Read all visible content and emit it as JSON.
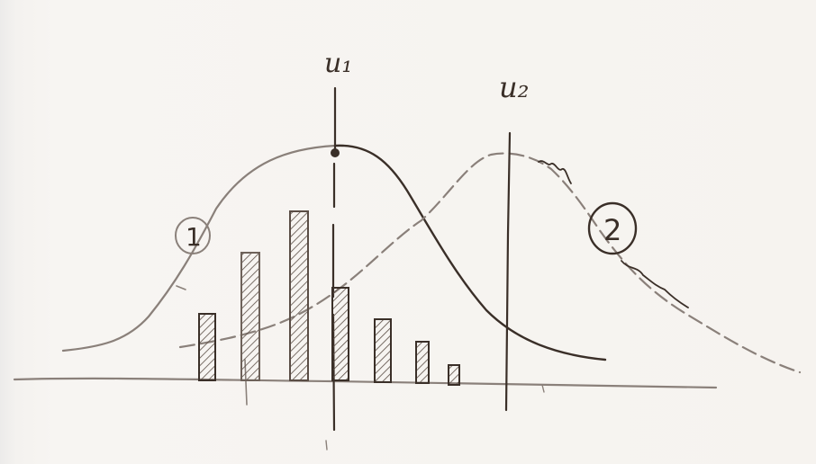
{
  "labels": {
    "u1": "u₁",
    "u2": "u₂",
    "curve1": "1",
    "curve2": "2"
  },
  "colors": {
    "ink": "#3a2f28",
    "ink_light": "#8a807a",
    "paper": "#f6f4f1"
  }
}
